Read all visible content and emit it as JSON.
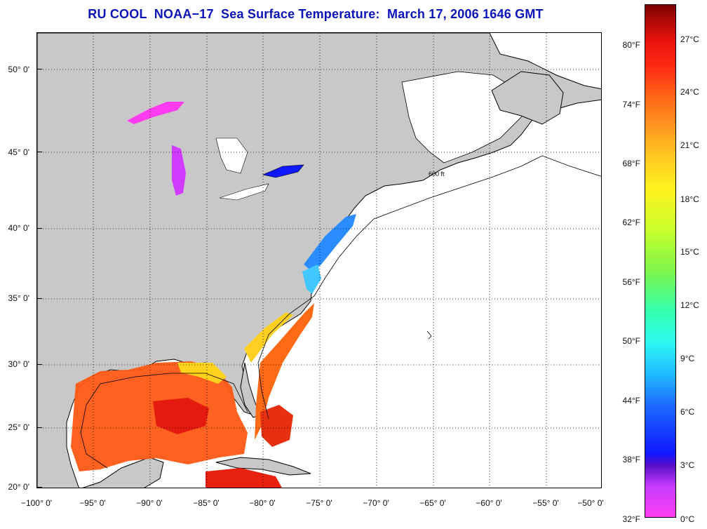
{
  "title": "RU COOL  NOAA−17  Sea Surface Temperature:  March 17, 2006 1646 GMT",
  "map": {
    "lon_ticks": [
      "−100° 0'",
      "−95° 0'",
      "−90° 0'",
      "−85° 0'",
      "−80° 0'",
      "−75° 0'",
      "−70° 0'",
      "−65° 0'",
      "−60° 0'",
      "−55° 0'",
      "−50° 0'"
    ],
    "lat_ticks": [
      "20° 0'",
      "25° 0'",
      "30° 0'",
      "35° 0'",
      "40° 0'",
      "45° 0'",
      "50° 0'"
    ],
    "isobath_label": "600 ft",
    "colors": {
      "land": "#c8c8c8",
      "ocean_no_data": "#ffffff",
      "coast": "#000000"
    }
  },
  "colorbar": {
    "fahrenheit_labels": [
      "80°F",
      "74°F",
      "68°F",
      "62°F",
      "56°F",
      "50°F",
      "44°F",
      "38°F",
      "32°F"
    ],
    "celsius_labels": [
      "27°C",
      "24°C",
      "21°C",
      "18°C",
      "15°C",
      "12°C",
      "9°C",
      "6°C",
      "3°C",
      "0°C"
    ]
  }
}
